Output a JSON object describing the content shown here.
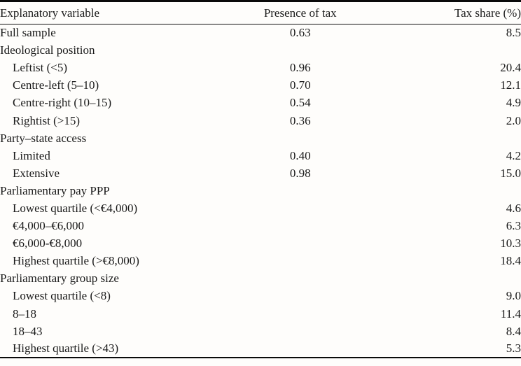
{
  "table": {
    "columns": [
      "Explanatory variable",
      "Presence of tax",
      "Tax share (%)"
    ],
    "rows": [
      {
        "label": "Full sample",
        "indent": false,
        "presence": "0.63",
        "share": "8.5"
      },
      {
        "label": "Ideological position",
        "indent": false,
        "presence": "",
        "share": ""
      },
      {
        "label": "Leftist (<5)",
        "indent": true,
        "presence": "0.96",
        "share": "20.4"
      },
      {
        "label": "Centre-left (5–10)",
        "indent": true,
        "presence": "0.70",
        "share": "12.1"
      },
      {
        "label": "Centre-right (10–15)",
        "indent": true,
        "presence": "0.54",
        "share": "4.9"
      },
      {
        "label": "Rightist (>15)",
        "indent": true,
        "presence": "0.36",
        "share": "2.0"
      },
      {
        "label": "Party–state access",
        "indent": false,
        "presence": "",
        "share": ""
      },
      {
        "label": "Limited",
        "indent": true,
        "presence": "0.40",
        "share": "4.2"
      },
      {
        "label": "Extensive",
        "indent": true,
        "presence": "0.98",
        "share": "15.0"
      },
      {
        "label": "Parliamentary pay PPP",
        "indent": false,
        "presence": "",
        "share": ""
      },
      {
        "label": "Lowest quartile (<€4,000)",
        "indent": true,
        "presence": "",
        "share": "4.6"
      },
      {
        "label": "€4,000–€6,000",
        "indent": true,
        "presence": "",
        "share": "6.3"
      },
      {
        "label": "€6,000-€8,000",
        "indent": true,
        "presence": "",
        "share": "10.3"
      },
      {
        "label": "Highest quartile (>€8,000)",
        "indent": true,
        "presence": "",
        "share": "18.4"
      },
      {
        "label": "Parliamentary group size",
        "indent": false,
        "presence": "",
        "share": ""
      },
      {
        "label": "Lowest quartile (<8)",
        "indent": true,
        "presence": "",
        "share": "9.0"
      },
      {
        "label": "8–18",
        "indent": true,
        "presence": "",
        "share": "11.4"
      },
      {
        "label": "18–43",
        "indent": true,
        "presence": "",
        "share": "8.4"
      },
      {
        "label": "Highest quartile (>43)",
        "indent": true,
        "presence": "",
        "share": "5.3"
      }
    ]
  },
  "colors": {
    "text": "#1a1a1a",
    "rule": "#0a0a0a",
    "background": "#fefdfb"
  }
}
